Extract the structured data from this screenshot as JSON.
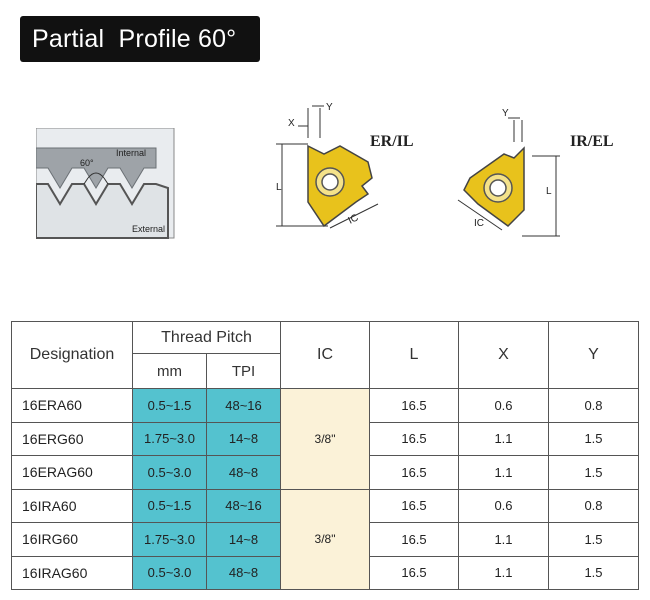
{
  "title": "Partial  Profile 60°",
  "thread_diagram": {
    "angle_label": "60°",
    "internal_label": "Internal",
    "external_label": "External"
  },
  "insert_er": {
    "heading": "ER/IL",
    "dim_x": "X",
    "dim_y": "Y",
    "dim_l": "L",
    "dim_ic": "IC"
  },
  "insert_ir": {
    "heading": "IR/EL",
    "dim_y": "Y",
    "dim_l": "L",
    "dim_ic": "IC"
  },
  "table": {
    "headers": {
      "designation": "Designation",
      "thread_pitch": "Thread  Pitch",
      "mm": "mm",
      "tpi": "TPI",
      "ic": "IC",
      "l": "L",
      "x": "X",
      "y": "Y"
    },
    "rows": [
      {
        "designation": "16ERA60",
        "mm": "0.5~1.5",
        "tpi": "48~16",
        "l": "16.5",
        "x": "0.6",
        "y": "0.8"
      },
      {
        "designation": "16ERG60",
        "mm": "1.75~3.0",
        "tpi": "14~8",
        "l": "16.5",
        "x": "1.1",
        "y": "1.5"
      },
      {
        "designation": "16ERAG60",
        "mm": "0.5~3.0",
        "tpi": "48~8",
        "l": "16.5",
        "x": "1.1",
        "y": "1.5"
      },
      {
        "designation": "16IRA60",
        "mm": "0.5~1.5",
        "tpi": "48~16",
        "l": "16.5",
        "x": "0.6",
        "y": "0.8"
      },
      {
        "designation": "16IRG60",
        "mm": "1.75~3.0",
        "tpi": "14~8",
        "l": "16.5",
        "x": "1.1",
        "y": "1.5"
      },
      {
        "designation": "16IRAG60",
        "mm": "0.5~3.0",
        "tpi": "48~8",
        "l": "16.5",
        "x": "1.1",
        "y": "1.5"
      }
    ],
    "ic_groups": [
      "3/8\"",
      "3/8\""
    ]
  },
  "colors": {
    "title_bg": "#111111",
    "pitch_fill": "#54c2cf",
    "ic_fill": "#fbf2d8",
    "insert_gold": "#e8c21c"
  }
}
